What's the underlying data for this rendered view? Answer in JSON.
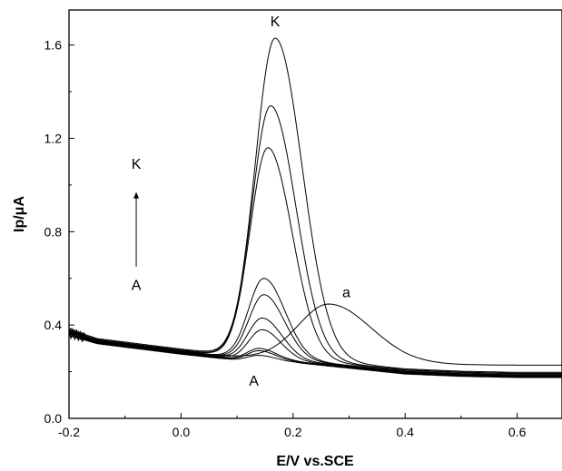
{
  "chart_data": {
    "type": "line",
    "title": "",
    "xlabel": "E/V vs.SCE",
    "ylabel": "Ip/μA",
    "xlim": [
      -0.2,
      0.68
    ],
    "ylim": [
      0.0,
      1.75
    ],
    "x_ticks": [
      -0.2,
      0.0,
      0.2,
      0.4,
      0.6
    ],
    "x_tick_labels": [
      "-0.2",
      "0.0",
      "0.2",
      "0.4",
      "0.6"
    ],
    "y_ticks": [
      0.0,
      0.4,
      0.8,
      1.2,
      1.6
    ],
    "y_tick_labels": [
      "0.0",
      "0.4",
      "0.8",
      "1.2",
      "1.6"
    ],
    "grid": false,
    "curve_profile_x": [
      -0.2,
      -0.15,
      -0.1,
      -0.05,
      0.0,
      0.05,
      0.1,
      0.2,
      0.3,
      0.4,
      0.5,
      0.6,
      0.68
    ],
    "series": [
      {
        "peak_x": 0.265,
        "peak_y": 0.49,
        "width": 0.078,
        "baseline_left": [
          0.375,
          0.335,
          0.32,
          0.305,
          0.29,
          0.275,
          0.265,
          0.255,
          0.245,
          0.235,
          0.23,
          0.228,
          0.228
        ],
        "baseline_right": 0.228
      },
      {
        "peak_x": 0.14,
        "peak_y": 0.27,
        "width": 0.03,
        "baseline_left": [
          0.355,
          0.32,
          0.305,
          0.29,
          0.275,
          0.262,
          0.25,
          0.24,
          0.215,
          0.19,
          0.18,
          0.175,
          0.175
        ],
        "baseline_right": 0.175
      },
      {
        "peak_x": 0.14,
        "peak_y": 0.29,
        "width": 0.03,
        "baseline_left": [
          0.36,
          0.322,
          0.307,
          0.292,
          0.277,
          0.264,
          0.252,
          0.242,
          0.217,
          0.192,
          0.182,
          0.177,
          0.177
        ],
        "baseline_right": 0.177
      },
      {
        "peak_x": 0.14,
        "peak_y": 0.3,
        "width": 0.031,
        "baseline_left": [
          0.362,
          0.324,
          0.309,
          0.294,
          0.279,
          0.266,
          0.254,
          0.244,
          0.219,
          0.194,
          0.184,
          0.179,
          0.179
        ],
        "baseline_right": 0.179
      },
      {
        "peak_x": 0.145,
        "peak_y": 0.38,
        "width": 0.034,
        "baseline_left": [
          0.365,
          0.326,
          0.311,
          0.296,
          0.281,
          0.268,
          0.256,
          0.246,
          0.221,
          0.196,
          0.186,
          0.181,
          0.181
        ],
        "baseline_right": 0.181
      },
      {
        "peak_x": 0.145,
        "peak_y": 0.43,
        "width": 0.036,
        "baseline_left": [
          0.368,
          0.328,
          0.313,
          0.298,
          0.283,
          0.27,
          0.258,
          0.248,
          0.223,
          0.198,
          0.188,
          0.183,
          0.183
        ],
        "baseline_right": 0.183
      },
      {
        "peak_x": 0.148,
        "peak_y": 0.53,
        "width": 0.038,
        "baseline_left": [
          0.37,
          0.33,
          0.315,
          0.3,
          0.285,
          0.272,
          0.26,
          0.25,
          0.225,
          0.2,
          0.19,
          0.185,
          0.185
        ],
        "baseline_right": 0.185
      },
      {
        "peak_x": 0.148,
        "peak_y": 0.6,
        "width": 0.039,
        "baseline_left": [
          0.372,
          0.332,
          0.317,
          0.302,
          0.287,
          0.274,
          0.262,
          0.252,
          0.227,
          0.202,
          0.192,
          0.187,
          0.187
        ],
        "baseline_right": 0.187
      },
      {
        "peak_x": 0.155,
        "peak_y": 1.16,
        "width": 0.045,
        "baseline_left": [
          0.376,
          0.336,
          0.321,
          0.306,
          0.291,
          0.278,
          0.266,
          0.256,
          0.231,
          0.206,
          0.196,
          0.191,
          0.191
        ],
        "baseline_right": 0.191
      },
      {
        "peak_x": 0.16,
        "peak_y": 1.34,
        "width": 0.047,
        "baseline_left": [
          0.378,
          0.338,
          0.323,
          0.308,
          0.293,
          0.28,
          0.268,
          0.258,
          0.233,
          0.208,
          0.198,
          0.193,
          0.193
        ],
        "baseline_right": 0.193
      },
      {
        "peak_x": 0.168,
        "peak_y": 1.63,
        "width": 0.05,
        "baseline_left": [
          0.382,
          0.342,
          0.327,
          0.312,
          0.297,
          0.284,
          0.272,
          0.262,
          0.237,
          0.212,
          0.202,
          0.197,
          0.197
        ],
        "baseline_right": 0.197
      }
    ],
    "annotations": [
      {
        "text": "K",
        "x": 0.168,
        "y": 1.68
      },
      {
        "text": "a",
        "x": 0.295,
        "y": 0.52
      },
      {
        "text": "A",
        "x": 0.13,
        "y": 0.14
      },
      {
        "text": "K",
        "x": -0.08,
        "y": 1.07
      },
      {
        "text": "A",
        "x": -0.08,
        "y": 0.55
      }
    ],
    "arrow": {
      "x": -0.08,
      "y_from": 0.65,
      "y_to": 0.97
    }
  }
}
